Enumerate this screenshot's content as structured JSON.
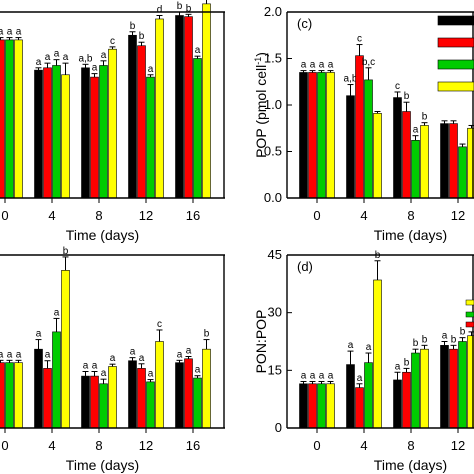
{
  "colors": {
    "series": [
      "#000000",
      "#ff0000",
      "#00cc00",
      "#ffff00"
    ],
    "axis": "#000000",
    "background": "#ffffff"
  },
  "chart_data": [
    {
      "panel": "a-cropped",
      "type": "bar",
      "categories": [
        "0",
        "4",
        "8",
        "12",
        "16"
      ],
      "xlabel": "Time (days)",
      "ylabel": "",
      "ylim": [
        0,
        1.6
      ],
      "show_yticks": false,
      "series": [
        {
          "values": [
            1.36,
            1.1,
            1.12,
            1.4,
            1.57
          ],
          "errors": [
            0.02,
            0.02,
            0.03,
            0.03,
            0.03
          ]
        },
        {
          "values": [
            1.36,
            1.12,
            1.04,
            1.31,
            1.56
          ],
          "errors": [
            0.02,
            0.04,
            0.03,
            0.03,
            0.02
          ]
        },
        {
          "values": [
            1.36,
            1.14,
            1.14,
            1.04,
            1.2
          ],
          "errors": [
            0.02,
            0.05,
            0.04,
            0.02,
            0.02
          ]
        },
        {
          "values": [
            1.36,
            1.06,
            1.28,
            1.54,
            1.67
          ],
          "errors": [
            0.02,
            0.1,
            0.02,
            0.03,
            0.04
          ]
        }
      ],
      "sig_labels": [
        [
          "a",
          "a",
          "a",
          "a"
        ],
        [
          "a",
          "a",
          "a",
          "a"
        ],
        [
          "a,b",
          "a",
          "a",
          "c"
        ],
        [
          "b",
          "b",
          "a",
          "d"
        ],
        [
          "b",
          "b",
          "a",
          "b"
        ]
      ]
    },
    {
      "panel": "c",
      "label": "(c)",
      "type": "bar",
      "categories": [
        "0",
        "4",
        "8",
        "12"
      ],
      "xlabel": "Time (days)",
      "ylabel": "POP (pmol cell",
      "ylabel_sup": "-1",
      "ylabel_close": ")",
      "ylim": [
        0,
        2.0
      ],
      "yticks": [
        "0.0",
        "0.5",
        "1.0",
        "1.5",
        "2.0"
      ],
      "series": [
        {
          "values": [
            1.35,
            1.1,
            1.08,
            0.8
          ],
          "errors": [
            0.02,
            0.12,
            0.06,
            0.03
          ]
        },
        {
          "values": [
            1.35,
            1.53,
            0.93,
            0.8
          ],
          "errors": [
            0.02,
            0.12,
            0.1,
            0.03
          ]
        },
        {
          "values": [
            1.35,
            1.27,
            0.62,
            0.55
          ],
          "errors": [
            0.02,
            0.13,
            0.05,
            0.03
          ]
        },
        {
          "values": [
            1.35,
            0.91,
            0.78,
            0.75
          ],
          "errors": [
            0.02,
            0.02,
            0.03,
            0.03
          ]
        }
      ],
      "sig_labels": [
        [
          "a",
          "a",
          "a",
          "a"
        ],
        [
          "a,b",
          "c",
          "b,c",
          ""
        ],
        [
          "c",
          "b",
          "a",
          "b"
        ],
        [
          "",
          "",
          "",
          ""
        ]
      ]
    },
    {
      "panel": "b-cropped",
      "type": "bar",
      "categories": [
        "0",
        "4",
        "8",
        "12",
        "16"
      ],
      "xlabel": "Time (days)",
      "ylabel": "",
      "ylim": [
        0,
        45
      ],
      "show_yticks": false,
      "series": [
        {
          "values": [
            17.0,
            20.5,
            13.5,
            17.5,
            17.0
          ],
          "errors": [
            0.6,
            2.5,
            1.2,
            0.8,
            0.6
          ]
        },
        {
          "values": [
            17.0,
            15.5,
            13.5,
            15.5,
            18.0
          ],
          "errors": [
            0.6,
            2.0,
            1.2,
            1.2,
            0.6
          ]
        },
        {
          "values": [
            17.0,
            25.0,
            11.5,
            12.0,
            13.0
          ],
          "errors": [
            0.6,
            3.5,
            1.2,
            0.6,
            0.6
          ]
        },
        {
          "values": [
            17.0,
            41.0,
            16.0,
            22.5,
            20.5
          ],
          "errors": [
            0.6,
            3.5,
            0.6,
            3.0,
            2.5
          ]
        }
      ],
      "sig_labels": [
        [
          "a",
          "a",
          "a",
          "a"
        ],
        [
          "a",
          "a",
          "a",
          "b"
        ],
        [
          "a",
          "a",
          "a",
          "a"
        ],
        [
          "a",
          "a",
          "a",
          "c"
        ],
        [
          "a",
          "a",
          "a",
          "b"
        ]
      ]
    },
    {
      "panel": "d",
      "label": "(d)",
      "type": "bar",
      "categories": [
        "0",
        "4",
        "8",
        "12"
      ],
      "xlabel": "Time (days)",
      "ylabel": "PON:POP",
      "ylim": [
        0,
        45
      ],
      "yticks": [
        "0",
        "15",
        "30",
        "45"
      ],
      "series": [
        {
          "values": [
            11.5,
            16.5,
            12.5,
            21.5
          ],
          "errors": [
            0.6,
            3.5,
            2.0,
            1.0
          ]
        },
        {
          "values": [
            11.5,
            10.5,
            14.5,
            20.5
          ],
          "errors": [
            0.6,
            1.0,
            1.0,
            1.0
          ]
        },
        {
          "values": [
            11.5,
            17.0,
            19.5,
            22.5
          ],
          "errors": [
            0.6,
            2.5,
            1.0,
            1.0
          ]
        },
        {
          "values": [
            11.5,
            38.5,
            20.5,
            24.0
          ],
          "errors": [
            0.6,
            5.0,
            1.0,
            1.0
          ]
        }
      ],
      "sig_labels": [
        [
          "a",
          "a",
          "a",
          "a"
        ],
        [
          "a",
          "a",
          "a",
          "b"
        ],
        [
          "a",
          "b",
          "b",
          "b"
        ],
        [
          "a",
          "b",
          "b",
          ""
        ]
      ]
    }
  ]
}
